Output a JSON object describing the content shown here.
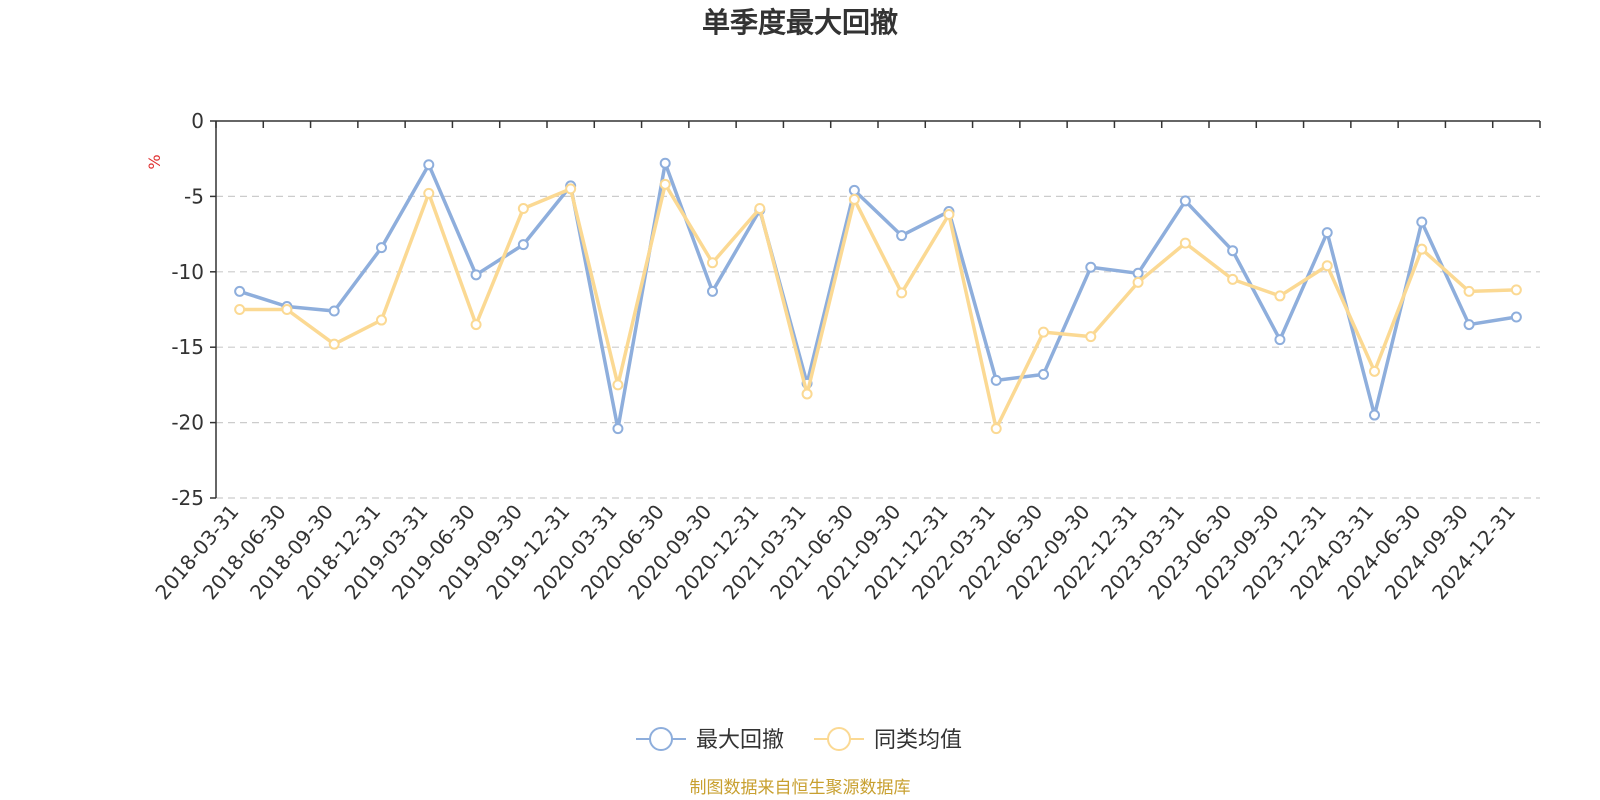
{
  "chart_data": {
    "type": "line",
    "title": "单季度最大回撤",
    "ylabel": "%",
    "ylim": [
      -25,
      0
    ],
    "yticks": [
      0,
      -5,
      -10,
      -15,
      -20,
      -25
    ],
    "grid": true,
    "legend_position": "bottom",
    "source": "制图数据来自恒生聚源数据库",
    "colors": {
      "unit": "#e03030",
      "source": "#c8a030",
      "axis": "#333333",
      "grid": "#cccccc"
    },
    "categories": [
      "2018-03-31",
      "2018-06-30",
      "2018-09-30",
      "2018-12-31",
      "2019-03-31",
      "2019-06-30",
      "2019-09-30",
      "2019-12-31",
      "2020-03-31",
      "2020-06-30",
      "2020-09-30",
      "2020-12-31",
      "2021-03-31",
      "2021-06-30",
      "2021-09-30",
      "2021-12-31",
      "2022-03-31",
      "2022-06-30",
      "2022-09-30",
      "2022-12-31",
      "2023-03-31",
      "2023-06-30",
      "2023-09-30",
      "2023-12-31",
      "2024-03-31",
      "2024-06-30",
      "2024-09-30",
      "2024-12-31"
    ],
    "series": [
      {
        "name": "最大回撤",
        "color": "#8eaedc",
        "values": [
          -11.3,
          -12.3,
          -12.6,
          -8.4,
          -2.9,
          -10.2,
          -8.2,
          -4.3,
          -20.4,
          -2.8,
          -11.3,
          -5.9,
          -17.4,
          -4.6,
          -7.6,
          -6.0,
          -17.2,
          -16.8,
          -9.7,
          -10.1,
          -5.3,
          -8.6,
          -14.5,
          -7.4,
          -19.5,
          -6.7,
          -13.5,
          -13.0
        ]
      },
      {
        "name": "同类均值",
        "color": "#fbd993",
        "values": [
          -12.5,
          -12.5,
          -14.8,
          -13.2,
          -4.8,
          -13.5,
          -5.8,
          -4.5,
          -17.5,
          -4.2,
          -9.4,
          -5.8,
          -18.1,
          -5.2,
          -11.4,
          -6.2,
          -20.4,
          -14.0,
          -14.3,
          -10.7,
          -8.1,
          -10.5,
          -11.6,
          -9.6,
          -16.6,
          -8.5,
          -11.3,
          -11.2
        ]
      }
    ]
  }
}
